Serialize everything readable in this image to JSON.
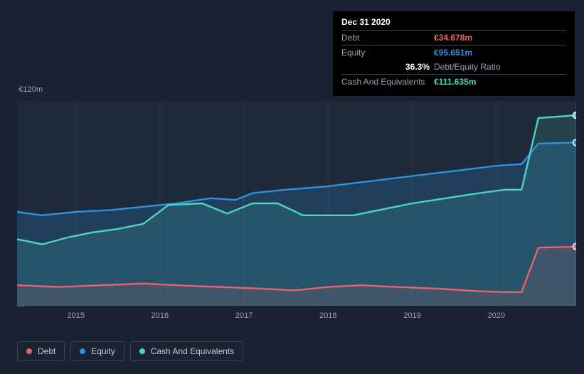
{
  "colors": {
    "background": "#1a2332",
    "grid": "#2b3646",
    "axis_text": "#9aa3af",
    "tooltip_bg": "#000000",
    "debt": "#e8636f",
    "equity": "#2f8fe0",
    "cash": "#4ad6c1",
    "cash_fill": "rgba(74,214,193,0.15)",
    "equity_fill": "rgba(47,143,224,0.20)",
    "debt_fill": "rgba(232,99,111,0.12)"
  },
  "tooltip": {
    "date": "Dec 31 2020",
    "rows": [
      {
        "label": "Debt",
        "value": "€34.678m",
        "key": "debt"
      },
      {
        "label": "Equity",
        "value": "€95.651m",
        "key": "equity"
      }
    ],
    "ratio_pct": "36.3%",
    "ratio_label": "Debt/Equity Ratio",
    "cash_row": {
      "label": "Cash And Equivalents",
      "value": "€111.635m",
      "key": "cash"
    }
  },
  "chart": {
    "type": "area-line",
    "y_top_label": "€120m",
    "y_bottom_label": "€0",
    "ylim": [
      0,
      120
    ],
    "x_ticks": [
      "2015",
      "2016",
      "2017",
      "2018",
      "2019",
      "2020"
    ],
    "x_domain": [
      2014.3,
      2020.95
    ],
    "x_highlight": 2020.95,
    "line_width": 2.4,
    "series": {
      "equity": [
        [
          2014.3,
          55
        ],
        [
          2014.6,
          53
        ],
        [
          2015.0,
          55
        ],
        [
          2015.4,
          56
        ],
        [
          2015.8,
          58
        ],
        [
          2016.2,
          60
        ],
        [
          2016.6,
          63
        ],
        [
          2016.9,
          62
        ],
        [
          2017.1,
          66
        ],
        [
          2017.5,
          68
        ],
        [
          2018.0,
          70
        ],
        [
          2018.5,
          73
        ],
        [
          2019.0,
          76
        ],
        [
          2019.5,
          79
        ],
        [
          2020.0,
          82
        ],
        [
          2020.3,
          83
        ],
        [
          2020.5,
          95
        ],
        [
          2020.95,
          95.65
        ]
      ],
      "cash": [
        [
          2014.3,
          39
        ],
        [
          2014.6,
          36
        ],
        [
          2014.9,
          40
        ],
        [
          2015.2,
          43
        ],
        [
          2015.5,
          45
        ],
        [
          2015.8,
          48
        ],
        [
          2016.1,
          59
        ],
        [
          2016.5,
          60
        ],
        [
          2016.8,
          54
        ],
        [
          2017.1,
          60
        ],
        [
          2017.4,
          60
        ],
        [
          2017.7,
          53
        ],
        [
          2018.0,
          53
        ],
        [
          2018.3,
          53
        ],
        [
          2018.6,
          56
        ],
        [
          2019.0,
          60
        ],
        [
          2019.4,
          63
        ],
        [
          2019.8,
          66
        ],
        [
          2020.1,
          68
        ],
        [
          2020.3,
          68
        ],
        [
          2020.5,
          110
        ],
        [
          2020.95,
          111.6
        ]
      ],
      "debt": [
        [
          2014.3,
          12
        ],
        [
          2014.8,
          11
        ],
        [
          2015.3,
          12
        ],
        [
          2015.8,
          13
        ],
        [
          2016.2,
          12
        ],
        [
          2016.7,
          11
        ],
        [
          2017.2,
          10
        ],
        [
          2017.6,
          9
        ],
        [
          2018.0,
          11
        ],
        [
          2018.4,
          12
        ],
        [
          2018.8,
          11
        ],
        [
          2019.3,
          10
        ],
        [
          2019.8,
          8.5
        ],
        [
          2020.1,
          8
        ],
        [
          2020.3,
          8
        ],
        [
          2020.5,
          34
        ],
        [
          2020.95,
          34.68
        ]
      ]
    }
  },
  "legend": [
    {
      "key": "debt",
      "label": "Debt"
    },
    {
      "key": "equity",
      "label": "Equity"
    },
    {
      "key": "cash",
      "label": "Cash And Equivalents"
    }
  ]
}
